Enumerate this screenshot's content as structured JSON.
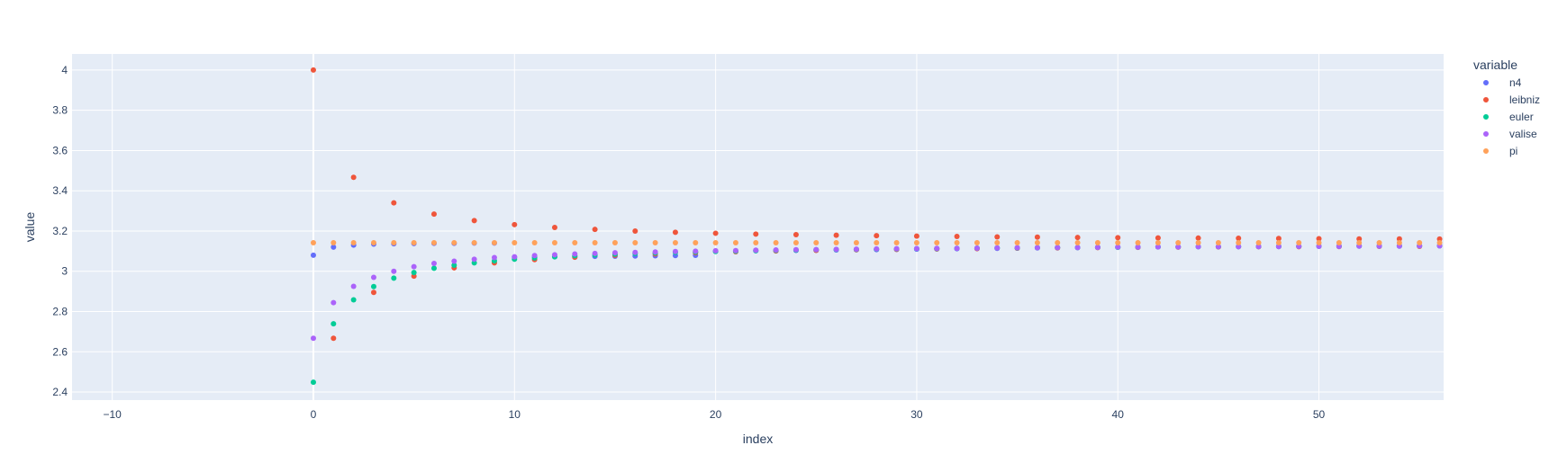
{
  "chart_data": {
    "type": "scatter",
    "xlabel": "index",
    "ylabel": "value",
    "legend_title": "variable",
    "legend_position": "right",
    "grid": true,
    "xlim": [
      -12,
      56.2
    ],
    "ylim": [
      2.36,
      4.08
    ],
    "x_ticks": [
      -10,
      0,
      10,
      20,
      30,
      40,
      50
    ],
    "y_ticks": [
      2.4,
      2.6,
      2.8,
      3,
      3.2,
      3.4,
      3.6,
      3.8,
      4
    ],
    "x_tick_labels": [
      "−10",
      "0",
      "10",
      "20",
      "30",
      "40",
      "50"
    ],
    "y_tick_labels": [
      "2.4",
      "2.6",
      "2.8",
      "3",
      "3.2",
      "3.4",
      "3.6",
      "3.8",
      "4"
    ],
    "x": [
      0,
      1,
      2,
      3,
      4,
      5,
      6,
      7,
      8,
      9,
      10,
      11,
      12,
      13,
      14,
      15,
      16,
      17,
      18,
      19,
      20,
      21,
      22,
      23,
      24,
      25,
      26,
      27,
      28,
      29,
      30,
      31,
      32,
      33,
      34,
      35,
      36,
      37,
      38,
      39,
      40,
      41,
      42,
      43,
      44,
      45,
      46,
      47,
      48,
      49,
      50,
      51,
      52,
      53,
      54,
      55,
      56
    ],
    "series": [
      {
        "name": "n4",
        "color": "#636efa",
        "values": [
          3.08,
          3.12,
          3.13,
          3.135,
          3.137,
          3.138,
          3.139,
          3.139,
          3.14,
          3.14,
          3.07,
          3.071,
          3.072,
          3.073,
          3.074,
          3.075,
          3.076,
          3.077,
          3.078,
          3.079,
          3.1,
          3.101,
          3.102,
          3.103,
          3.104,
          3.105,
          3.106,
          3.107,
          3.108,
          3.109,
          3.11,
          3.111,
          3.112,
          3.113,
          3.114,
          3.115,
          3.116,
          3.117,
          3.118,
          3.119,
          3.12,
          3.12,
          3.121,
          3.121,
          3.122,
          3.122,
          3.123,
          3.123,
          3.124,
          3.124,
          3.125,
          3.125,
          3.126,
          3.126,
          3.127,
          3.127,
          3.128
        ]
      },
      {
        "name": "leibniz",
        "color": "#ef553b",
        "values": [
          4.0,
          2.667,
          3.467,
          2.895,
          3.34,
          2.976,
          3.284,
          3.017,
          3.252,
          3.042,
          3.232,
          3.058,
          3.218,
          3.07,
          3.208,
          3.079,
          3.2,
          3.086,
          3.194,
          3.092,
          3.189,
          3.097,
          3.185,
          3.101,
          3.182,
          3.104,
          3.179,
          3.107,
          3.177,
          3.109,
          3.175,
          3.111,
          3.173,
          3.113,
          3.171,
          3.115,
          3.17,
          3.116,
          3.168,
          3.118,
          3.167,
          3.119,
          3.166,
          3.12,
          3.165,
          3.121,
          3.164,
          3.122,
          3.163,
          3.122,
          3.162,
          3.123,
          3.161,
          3.124,
          3.161,
          3.124,
          3.16
        ]
      },
      {
        "name": "euler",
        "color": "#00cc96",
        "values": [
          2.449,
          2.739,
          2.858,
          2.924,
          2.966,
          2.994,
          3.015,
          3.03,
          3.042,
          3.052,
          3.06,
          3.066,
          3.072,
          3.077,
          3.081,
          3.085,
          3.088,
          3.091,
          3.094,
          3.096,
          3.098,
          3.1,
          3.102,
          3.104,
          3.105,
          3.107,
          3.108,
          3.109,
          3.11,
          3.111,
          3.112,
          3.113,
          3.114,
          3.115,
          3.116,
          3.116,
          3.117,
          3.118,
          3.118,
          3.119,
          3.119,
          3.12,
          3.121,
          3.121,
          3.122,
          3.122,
          3.122,
          3.123,
          3.123,
          3.124,
          3.124,
          3.124,
          3.125,
          3.125,
          3.125,
          3.126,
          3.126
        ]
      },
      {
        "name": "valise",
        "color": "#ab63fa",
        "values": [
          2.667,
          2.844,
          2.925,
          2.97,
          3.0,
          3.023,
          3.039,
          3.05,
          3.06,
          3.068,
          3.072,
          3.078,
          3.082,
          3.086,
          3.089,
          3.092,
          3.094,
          3.096,
          3.098,
          3.1,
          3.102,
          3.103,
          3.105,
          3.106,
          3.107,
          3.108,
          3.109,
          3.11,
          3.111,
          3.112,
          3.113,
          3.114,
          3.114,
          3.115,
          3.116,
          3.117,
          3.117,
          3.118,
          3.118,
          3.119,
          3.12,
          3.12,
          3.121,
          3.121,
          3.122,
          3.122,
          3.122,
          3.123,
          3.123,
          3.124,
          3.124,
          3.124,
          3.125,
          3.125,
          3.125,
          3.126,
          3.126
        ]
      },
      {
        "name": "pi",
        "color": "#ffa15a",
        "values": [
          3.1416,
          3.1416,
          3.1416,
          3.1416,
          3.1416,
          3.1416,
          3.1416,
          3.1416,
          3.1416,
          3.1416,
          3.1416,
          3.1416,
          3.1416,
          3.1416,
          3.1416,
          3.1416,
          3.1416,
          3.1416,
          3.1416,
          3.1416,
          3.1416,
          3.1416,
          3.1416,
          3.1416,
          3.1416,
          3.1416,
          3.1416,
          3.1416,
          3.1416,
          3.1416,
          3.1416,
          3.1416,
          3.1416,
          3.1416,
          3.1416,
          3.1416,
          3.1416,
          3.1416,
          3.1416,
          3.1416,
          3.1416,
          3.1416,
          3.1416,
          3.1416,
          3.1416,
          3.1416,
          3.1416,
          3.1416,
          3.1416,
          3.1416,
          3.1416,
          3.1416,
          3.1416,
          3.1416,
          3.1416,
          3.1416,
          3.1416
        ]
      }
    ],
    "colors": {
      "plot_background": "#e5ecf6",
      "grid": "#ffffff",
      "text": "#2a3f5f"
    }
  }
}
